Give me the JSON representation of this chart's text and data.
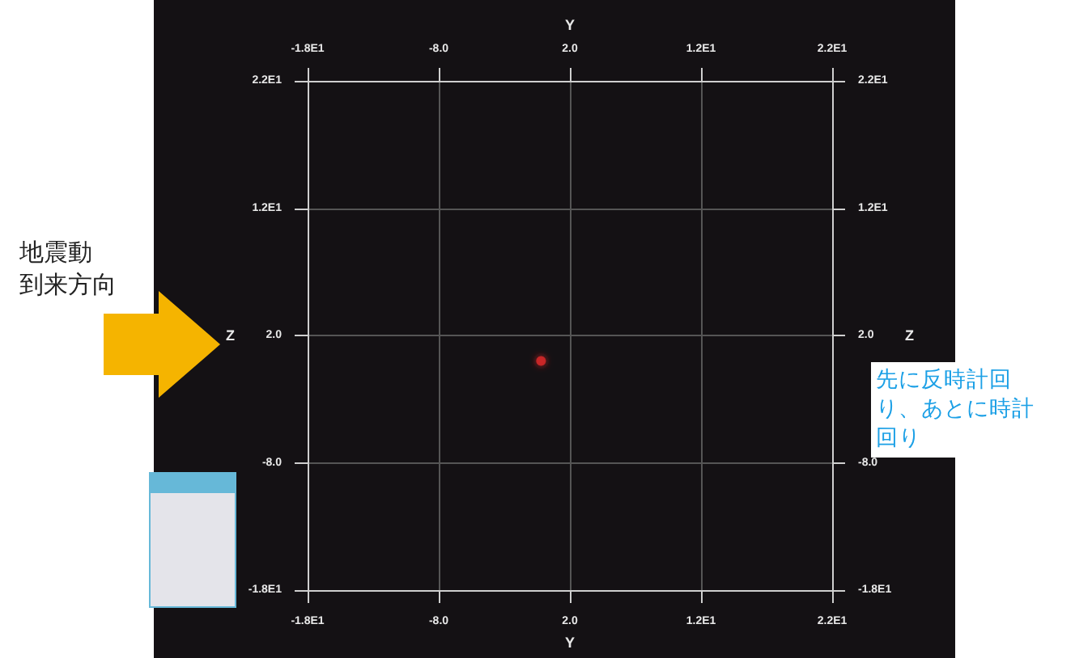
{
  "chart_data": {
    "type": "scatter",
    "xlabel": "Y",
    "x2label": "Y",
    "ylabel": "Z",
    "y2label": "Z",
    "x": [
      -0.2
    ],
    "series": [
      {
        "color": "#e02828",
        "values": [
          0
        ]
      }
    ],
    "marker": "circle",
    "xlim": [
      -18,
      22
    ],
    "x2lim": [
      -18,
      22
    ],
    "ylim": [
      -18,
      22
    ],
    "y2lim": [
      -18,
      22
    ],
    "xticks": [
      {
        "value": -18,
        "label": "-1.8E1"
      },
      {
        "value": -8,
        "label": "-8.0"
      },
      {
        "value": 2,
        "label": "2.0"
      },
      {
        "value": 12,
        "label": "1.2E1"
      },
      {
        "value": 22,
        "label": "2.2E1"
      }
    ],
    "x2ticks": [
      {
        "value": -18,
        "label": "-1.8E1"
      },
      {
        "value": -8,
        "label": "-8.0"
      },
      {
        "value": 2,
        "label": "2.0"
      },
      {
        "value": 12,
        "label": "1.2E1"
      },
      {
        "value": 22,
        "label": "2.2E1"
      }
    ],
    "yticks": [
      {
        "value": -18,
        "label": "-1.8E1"
      },
      {
        "value": -8,
        "label": "-8.0"
      },
      {
        "value": 2,
        "label": "2.0"
      },
      {
        "value": 12,
        "label": "1.2E1"
      },
      {
        "value": 22,
        "label": "2.2E1"
      }
    ],
    "y2ticks": [
      {
        "value": -18,
        "label": "-1.8E1"
      },
      {
        "value": -8,
        "label": "-8.0"
      },
      {
        "value": 2,
        "label": "2.0"
      },
      {
        "value": 12,
        "label": "1.2E1"
      },
      {
        "value": 22,
        "label": "2.2E1"
      }
    ],
    "grid": true,
    "annotations": [
      "地震動到来方向",
      "先に反時計回り、あとに時計回り"
    ]
  }
}
